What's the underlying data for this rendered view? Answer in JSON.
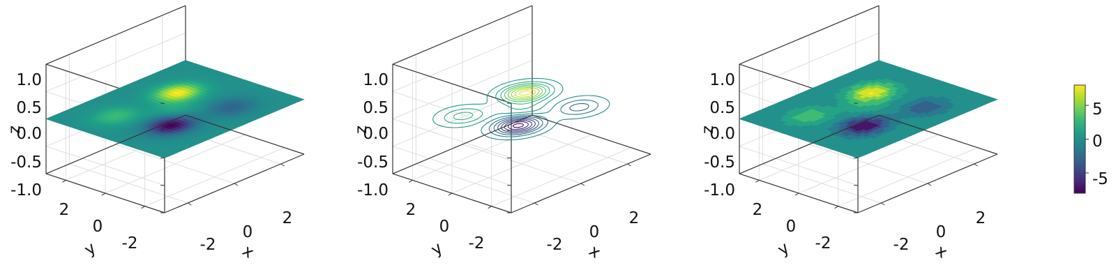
{
  "figure": {
    "panel_count": 3
  },
  "chart_data": [
    {
      "type": "surface",
      "xlabel": "x",
      "ylabel": "y",
      "zlabel": "z",
      "xlim": [
        -3,
        3
      ],
      "ylim": [
        -3,
        3
      ],
      "zlim": [
        -1.0,
        1.0
      ],
      "x_ticks": [
        "-2",
        "0",
        "2"
      ],
      "y_ticks": [
        "-2",
        "0",
        "2"
      ],
      "z_ticks": [
        "-1.0",
        "-0.5",
        "0.0",
        "0.5",
        "1.0"
      ],
      "grid": true,
      "surface_at_z": 0.0,
      "colormap": "viridis",
      "peaks": [
        {
          "x": 1.0,
          "y": 1.0,
          "z": 8.0
        },
        {
          "x": -1.0,
          "y": -1.0,
          "z": -8.0
        },
        {
          "x": -1.5,
          "y": 1.2,
          "z": 3.0
        },
        {
          "x": 1.2,
          "y": -1.5,
          "z": -3.0
        },
        {
          "x": 0.0,
          "y": 0.0,
          "z": 1.5
        }
      ]
    },
    {
      "type": "contour",
      "xlabel": "x",
      "ylabel": "y",
      "zlabel": "z",
      "xlim": [
        -3,
        3
      ],
      "ylim": [
        -3,
        3
      ],
      "zlim": [
        -1.0,
        1.0
      ],
      "x_ticks": [
        "-2",
        "0",
        "2"
      ],
      "y_ticks": [
        "-2",
        "0",
        "2"
      ],
      "z_ticks": [
        "-1.0",
        "-0.5",
        "0.0",
        "0.5",
        "1.0"
      ],
      "grid": true,
      "contour_at_z": 0.0,
      "colormap": "viridis",
      "levels": [
        -7.5,
        -6.5,
        -5.5,
        -4.5,
        -3.5,
        -2.5,
        -1.5,
        -0.5,
        0.5,
        1.5,
        2.5,
        3.5,
        4.5,
        5.5,
        6.5,
        7.5
      ]
    },
    {
      "type": "filled_contour",
      "xlabel": "x",
      "ylabel": "y",
      "zlabel": "z",
      "xlim": [
        -3,
        3
      ],
      "ylim": [
        -3,
        3
      ],
      "zlim": [
        -1.0,
        1.0
      ],
      "x_ticks": [
        "-2",
        "0",
        "2"
      ],
      "y_ticks": [
        "-2",
        "0",
        "2"
      ],
      "z_ticks": [
        "-1.0",
        "-0.5",
        "0.0",
        "0.5",
        "1.0"
      ],
      "grid": true,
      "contour_at_z": 0.0,
      "colormap": "viridis",
      "levels": [
        -8,
        -6,
        -4,
        -2,
        -0.7,
        0.7,
        2,
        4,
        6,
        8
      ]
    }
  ],
  "colorbar": {
    "colormap": "viridis",
    "range": [
      -8,
      8
    ],
    "ticks": [
      {
        "value": 5,
        "label": "5"
      },
      {
        "value": 0,
        "label": "0"
      },
      {
        "value": -5,
        "label": "-5"
      }
    ]
  },
  "colors": {
    "axis": "#333333",
    "grid": "#dddddd",
    "viridis": [
      "#440154",
      "#482878",
      "#3e4989",
      "#31688e",
      "#26828e",
      "#1f9e89",
      "#35b779",
      "#6ece58",
      "#b5de2b",
      "#fde725"
    ]
  }
}
